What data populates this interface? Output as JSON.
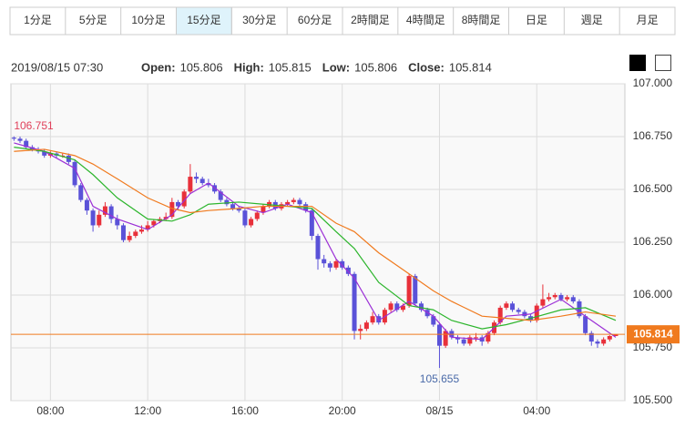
{
  "tabs": [
    "1分足",
    "5分足",
    "10分足",
    "15分足",
    "30分足",
    "60分足",
    "2時間足",
    "4時間足",
    "8時間足",
    "日足",
    "週足",
    "月足"
  ],
  "active_tab": 3,
  "header": {
    "datetime": "2019/08/15 07:30",
    "labels": [
      "Open:",
      "High:",
      "Low:",
      "Close:"
    ]
  },
  "chart_data": {
    "type": "candlestick",
    "up_color": "#e8303a",
    "down_color": "#5a52d8",
    "ohlc": [
      [
        106.745,
        106.751,
        106.73,
        106.74
      ],
      [
        106.74,
        106.75,
        106.72,
        106.73
      ],
      [
        106.73,
        106.74,
        106.69,
        106.7
      ],
      [
        106.7,
        106.71,
        106.68,
        106.69
      ],
      [
        106.69,
        106.7,
        106.67,
        106.68
      ],
      [
        106.68,
        106.69,
        106.65,
        106.66
      ],
      [
        106.66,
        106.68,
        106.65,
        106.67
      ],
      [
        106.67,
        106.68,
        106.65,
        106.66
      ],
      [
        106.66,
        106.67,
        106.65,
        106.66
      ],
      [
        106.66,
        106.67,
        106.62,
        106.63
      ],
      [
        106.63,
        106.64,
        106.51,
        106.52
      ],
      [
        106.52,
        106.53,
        106.44,
        106.45
      ],
      [
        106.45,
        106.46,
        106.38,
        106.4
      ],
      [
        106.4,
        106.41,
        106.3,
        106.33
      ],
      [
        106.33,
        106.4,
        106.32,
        106.38
      ],
      [
        106.38,
        106.44,
        106.37,
        106.42
      ],
      [
        106.42,
        106.43,
        106.34,
        106.36
      ],
      [
        106.36,
        106.38,
        106.31,
        106.33
      ],
      [
        106.33,
        106.34,
        106.25,
        106.26
      ],
      [
        106.26,
        106.3,
        106.25,
        106.28
      ],
      [
        106.28,
        106.31,
        106.27,
        106.3
      ],
      [
        106.3,
        106.33,
        106.29,
        106.31
      ],
      [
        106.31,
        106.35,
        106.3,
        106.33
      ],
      [
        106.33,
        106.36,
        106.32,
        106.35
      ],
      [
        106.35,
        106.37,
        106.34,
        106.36
      ],
      [
        106.36,
        106.39,
        106.35,
        106.37
      ],
      [
        106.37,
        106.46,
        106.36,
        106.44
      ],
      [
        106.44,
        106.45,
        106.4,
        106.42
      ],
      [
        106.42,
        106.5,
        106.41,
        106.49
      ],
      [
        106.49,
        106.62,
        106.48,
        106.56
      ],
      [
        106.56,
        106.58,
        106.53,
        106.55
      ],
      [
        106.55,
        106.56,
        106.52,
        106.53
      ],
      [
        106.53,
        106.55,
        106.51,
        106.52
      ],
      [
        106.52,
        106.53,
        106.48,
        106.49
      ],
      [
        106.49,
        106.5,
        106.44,
        106.45
      ],
      [
        106.45,
        106.46,
        106.42,
        106.43
      ],
      [
        106.43,
        106.44,
        106.4,
        106.41
      ],
      [
        106.41,
        106.42,
        106.39,
        106.4
      ],
      [
        106.4,
        106.41,
        106.32,
        106.33
      ],
      [
        106.33,
        106.37,
        106.32,
        106.36
      ],
      [
        106.36,
        106.4,
        106.35,
        106.39
      ],
      [
        106.39,
        106.43,
        106.38,
        106.42
      ],
      [
        106.42,
        106.45,
        106.41,
        106.44
      ],
      [
        106.44,
        106.45,
        106.4,
        106.41
      ],
      [
        106.41,
        106.44,
        106.4,
        106.43
      ],
      [
        106.43,
        106.45,
        106.42,
        106.44
      ],
      [
        106.44,
        106.46,
        106.43,
        106.45
      ],
      [
        106.45,
        106.46,
        106.42,
        106.43
      ],
      [
        106.43,
        106.44,
        106.39,
        106.4
      ],
      [
        106.4,
        106.41,
        106.26,
        106.28
      ],
      [
        106.28,
        106.29,
        106.12,
        106.17
      ],
      [
        106.17,
        106.19,
        106.13,
        106.15
      ],
      [
        106.15,
        106.16,
        106.11,
        106.13
      ],
      [
        106.13,
        106.17,
        106.12,
        106.16
      ],
      [
        106.16,
        106.17,
        106.12,
        106.13
      ],
      [
        106.13,
        106.14,
        106.09,
        106.1
      ],
      [
        106.1,
        106.11,
        105.79,
        105.83
      ],
      [
        105.83,
        105.86,
        105.79,
        105.84
      ],
      [
        105.84,
        105.88,
        105.83,
        105.87
      ],
      [
        105.87,
        105.92,
        105.86,
        105.9
      ],
      [
        105.9,
        105.91,
        105.86,
        105.87
      ],
      [
        105.87,
        105.94,
        105.86,
        105.93
      ],
      [
        105.93,
        105.97,
        105.92,
        105.96
      ],
      [
        105.96,
        105.97,
        105.92,
        105.93
      ],
      [
        105.93,
        105.96,
        105.92,
        105.95
      ],
      [
        105.95,
        106.1,
        105.94,
        106.09
      ],
      [
        106.09,
        106.1,
        105.95,
        105.96
      ],
      [
        105.96,
        105.97,
        105.92,
        105.93
      ],
      [
        105.93,
        105.94,
        105.89,
        105.9
      ],
      [
        105.9,
        105.91,
        105.85,
        105.86
      ],
      [
        105.86,
        105.87,
        105.655,
        105.76
      ],
      [
        105.76,
        105.84,
        105.75,
        105.83
      ],
      [
        105.83,
        105.84,
        105.79,
        105.8
      ],
      [
        105.8,
        105.81,
        105.77,
        105.79
      ],
      [
        105.79,
        105.8,
        105.76,
        105.77
      ],
      [
        105.77,
        105.81,
        105.76,
        105.8
      ],
      [
        105.8,
        105.82,
        105.78,
        105.8
      ],
      [
        105.8,
        105.81,
        105.76,
        105.78
      ],
      [
        105.78,
        105.83,
        105.77,
        105.82
      ],
      [
        105.82,
        105.88,
        105.81,
        105.87
      ],
      [
        105.87,
        105.95,
        105.86,
        105.94
      ],
      [
        105.94,
        105.97,
        105.93,
        105.96
      ],
      [
        105.96,
        105.97,
        105.92,
        105.93
      ],
      [
        105.93,
        105.94,
        105.91,
        105.92
      ],
      [
        105.92,
        105.93,
        105.89,
        105.9
      ],
      [
        105.9,
        105.91,
        105.87,
        105.88
      ],
      [
        105.88,
        105.96,
        105.87,
        105.95
      ],
      [
        105.95,
        106.05,
        105.94,
        105.98
      ],
      [
        105.98,
        106.01,
        105.97,
        105.99
      ],
      [
        105.99,
        106.01,
        105.98,
        106.0
      ],
      [
        106.0,
        106.01,
        105.97,
        105.98
      ],
      [
        105.98,
        106.0,
        105.97,
        105.99
      ],
      [
        105.99,
        106.0,
        105.96,
        105.97
      ],
      [
        105.97,
        105.98,
        105.89,
        105.9
      ],
      [
        105.9,
        105.91,
        105.81,
        105.82
      ],
      [
        105.82,
        105.83,
        105.76,
        105.78
      ],
      [
        105.78,
        105.79,
        105.75,
        105.77
      ],
      [
        105.77,
        105.8,
        105.76,
        105.79
      ],
      [
        105.79,
        105.81,
        105.78,
        105.806
      ],
      [
        105.806,
        105.815,
        105.806,
        105.814
      ]
    ],
    "series": [
      {
        "color": "#9b2fd6",
        "x": [
          0,
          5,
          10,
          13,
          17,
          22,
          26,
          29,
          32,
          37,
          41,
          45,
          49,
          53,
          56,
          60,
          65,
          69,
          72,
          77,
          81,
          85,
          90,
          94,
          99
        ],
        "values": [
          106.72,
          106.68,
          106.6,
          106.42,
          106.36,
          106.31,
          106.38,
          106.48,
          106.53,
          106.42,
          106.39,
          106.43,
          106.39,
          106.17,
          106.08,
          105.88,
          105.97,
          105.9,
          105.8,
          105.79,
          105.9,
          105.91,
          105.98,
          105.9,
          105.8
        ]
      },
      {
        "color": "#2cb52c",
        "x": [
          0,
          5,
          10,
          13,
          17,
          22,
          26,
          29,
          32,
          37,
          41,
          45,
          49,
          53,
          56,
          60,
          65,
          69,
          72,
          77,
          81,
          85,
          90,
          94,
          99
        ],
        "values": [
          106.7,
          106.68,
          106.64,
          106.57,
          106.46,
          106.36,
          106.35,
          106.38,
          106.43,
          106.44,
          106.43,
          106.42,
          106.41,
          106.3,
          106.22,
          106.06,
          105.95,
          105.93,
          105.88,
          105.84,
          105.86,
          105.89,
          105.93,
          105.94,
          105.88
        ]
      },
      {
        "color": "#f07a1e",
        "x": [
          0,
          5,
          10,
          13,
          17,
          22,
          26,
          29,
          32,
          37,
          41,
          45,
          49,
          53,
          56,
          60,
          65,
          69,
          72,
          77,
          81,
          85,
          90,
          94,
          99
        ],
        "values": [
          106.68,
          106.69,
          106.66,
          106.62,
          106.55,
          106.46,
          106.41,
          106.39,
          106.4,
          106.41,
          106.42,
          106.42,
          106.42,
          106.34,
          106.3,
          106.2,
          106.1,
          106.02,
          105.97,
          105.9,
          105.89,
          105.88,
          105.9,
          105.92,
          105.9
        ]
      }
    ],
    "xlim": [
      -0.5,
      100.5
    ],
    "xticks": [
      {
        "value": 6,
        "label": "08:00"
      },
      {
        "value": 22,
        "label": "12:00"
      },
      {
        "value": 38,
        "label": "16:00"
      },
      {
        "value": 54,
        "label": "20:00"
      },
      {
        "value": 70,
        "label": "08/15"
      },
      {
        "value": 86,
        "label": "04:00"
      }
    ],
    "ylim": [
      105.5,
      107.0
    ],
    "yticks": [
      {
        "value": 105.5,
        "label": "105.500"
      },
      {
        "value": 105.75,
        "label": "105.750"
      },
      {
        "value": 106,
        "label": "106.000"
      },
      {
        "value": 106.25,
        "label": "106.250"
      },
      {
        "value": 106.5,
        "label": "106.500"
      },
      {
        "value": 106.75,
        "label": "106.750"
      },
      {
        "value": 107,
        "label": "107.000"
      }
    ],
    "grid": true,
    "price_line_color": "#f07a1e"
  }
}
